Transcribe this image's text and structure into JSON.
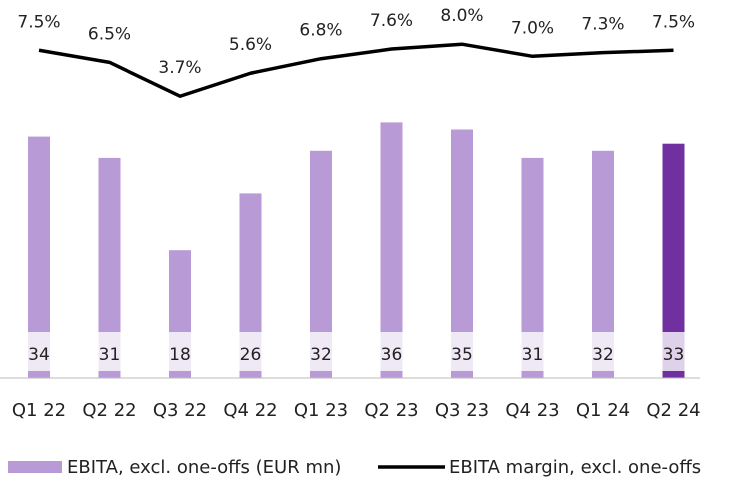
{
  "chart_data": {
    "type": "bar",
    "categories": [
      "Q1 22",
      "Q2 22",
      "Q3 22",
      "Q4 22",
      "Q1 23",
      "Q2 23",
      "Q3 23",
      "Q4 23",
      "Q1 24",
      "Q2 24"
    ],
    "series": [
      {
        "name": "EBITA, excl. one-offs (EUR mn)",
        "type": "bar",
        "color": "#b89ad6",
        "colors": [
          "#b89ad6",
          "#b89ad6",
          "#b89ad6",
          "#b89ad6",
          "#b89ad6",
          "#b89ad6",
          "#b89ad6",
          "#b89ad6",
          "#b89ad6",
          "#7030a0"
        ],
        "values": [
          34,
          31,
          18,
          26,
          32,
          36,
          35,
          31,
          32,
          33
        ]
      },
      {
        "name": "EBITA margin, excl. one-offs",
        "type": "line",
        "axis": "y2",
        "color": "#000000",
        "values": [
          7.5,
          6.5,
          3.7,
          5.6,
          6.8,
          7.6,
          8.0,
          7.0,
          7.3,
          7.5
        ],
        "value_labels": [
          "7.5%",
          "6.5%",
          "3.7%",
          "5.6%",
          "6.8%",
          "7.6%",
          "8.0%",
          "7.0%",
          "7.3%",
          "7.5%"
        ]
      }
    ],
    "ylim": [
      0,
      40
    ],
    "y2lim": [
      0,
      10
    ],
    "legend": "bottom"
  }
}
